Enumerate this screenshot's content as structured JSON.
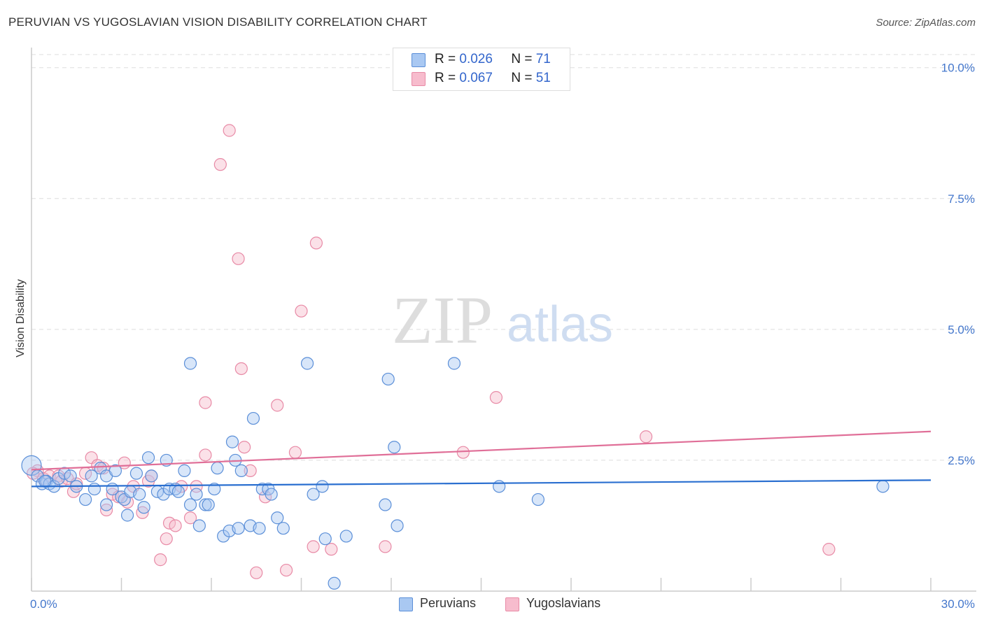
{
  "header": {
    "title": "PERUVIAN VS YUGOSLAVIAN VISION DISABILITY CORRELATION CHART",
    "source": "Source: ZipAtlas.com"
  },
  "watermark": {
    "zip": "ZIP",
    "atlas": "atlas"
  },
  "colors": {
    "peruvian_fill": "#a9c8f2",
    "peruvian_stroke": "#5b8fd8",
    "peruvian_line": "#2a6fd0",
    "yugoslav_fill": "#f7bccd",
    "yugoslav_stroke": "#e88aa6",
    "yugoslav_line": "#e06f98",
    "tick": "#4477cc"
  },
  "legend_top": [
    {
      "r_label": "R =",
      "r_value": "0.026",
      "n_label": "N =",
      "n_value": "71"
    },
    {
      "r_label": "R =",
      "r_value": "0.067",
      "n_label": "N =",
      "n_value": "51"
    }
  ],
  "legend_bottom": [
    "Peruvians",
    "Yugoslavians"
  ],
  "chart_data": {
    "type": "scatter",
    "title": "PERUVIAN VS YUGOSLAVIAN VISION DISABILITY CORRELATION CHART",
    "xlabel": "",
    "ylabel": "Vision Disability",
    "xlim": [
      0,
      30
    ],
    "ylim": [
      0,
      10.25
    ],
    "x_tick_labels": [
      "0.0%",
      "30.0%"
    ],
    "y_ticks": [
      2.5,
      5.0,
      7.5,
      10.0
    ],
    "y_tick_labels": [
      "2.5%",
      "5.0%",
      "7.5%",
      "10.0%"
    ],
    "series": [
      {
        "name": "Peruvians",
        "r": 0.026,
        "n": 71,
        "trend": {
          "x": [
            0,
            30
          ],
          "y": [
            2.0,
            2.12
          ]
        },
        "points": [
          [
            0.0,
            2.4
          ],
          [
            0.2,
            2.2
          ],
          [
            0.35,
            2.05
          ],
          [
            0.5,
            2.1
          ],
          [
            0.6,
            2.05
          ],
          [
            0.75,
            2.0
          ],
          [
            0.9,
            2.15
          ],
          [
            1.1,
            2.25
          ],
          [
            1.3,
            2.2
          ],
          [
            1.5,
            2.0
          ],
          [
            1.8,
            1.75
          ],
          [
            2.0,
            2.2
          ],
          [
            2.1,
            1.95
          ],
          [
            2.3,
            2.35
          ],
          [
            2.5,
            2.2
          ],
          [
            2.5,
            1.65
          ],
          [
            2.7,
            1.95
          ],
          [
            2.8,
            2.3
          ],
          [
            3.0,
            1.8
          ],
          [
            3.1,
            1.75
          ],
          [
            3.2,
            1.45
          ],
          [
            3.3,
            1.9
          ],
          [
            3.5,
            2.25
          ],
          [
            3.6,
            1.85
          ],
          [
            3.75,
            1.6
          ],
          [
            3.9,
            2.55
          ],
          [
            4.0,
            2.2
          ],
          [
            4.2,
            1.9
          ],
          [
            4.4,
            1.85
          ],
          [
            4.5,
            2.5
          ],
          [
            4.6,
            1.95
          ],
          [
            4.8,
            1.95
          ],
          [
            4.9,
            1.9
          ],
          [
            5.1,
            2.3
          ],
          [
            5.3,
            4.35
          ],
          [
            5.3,
            1.65
          ],
          [
            5.5,
            1.85
          ],
          [
            5.6,
            1.25
          ],
          [
            5.8,
            1.65
          ],
          [
            5.9,
            1.65
          ],
          [
            6.1,
            1.95
          ],
          [
            6.2,
            2.35
          ],
          [
            6.4,
            1.05
          ],
          [
            6.6,
            1.15
          ],
          [
            6.7,
            2.85
          ],
          [
            6.8,
            2.5
          ],
          [
            6.9,
            1.2
          ],
          [
            7.0,
            2.3
          ],
          [
            7.3,
            1.25
          ],
          [
            7.4,
            3.3
          ],
          [
            7.6,
            1.2
          ],
          [
            7.7,
            1.95
          ],
          [
            7.9,
            1.95
          ],
          [
            8.0,
            1.85
          ],
          [
            8.2,
            1.4
          ],
          [
            8.4,
            1.2
          ],
          [
            9.2,
            4.35
          ],
          [
            9.4,
            1.85
          ],
          [
            9.7,
            2.0
          ],
          [
            9.8,
            1.0
          ],
          [
            10.1,
            0.15
          ],
          [
            10.5,
            1.05
          ],
          [
            11.8,
            1.65
          ],
          [
            11.9,
            4.05
          ],
          [
            12.1,
            2.75
          ],
          [
            12.2,
            1.25
          ],
          [
            14.1,
            4.35
          ],
          [
            15.6,
            2.0
          ],
          [
            16.9,
            1.75
          ],
          [
            28.4,
            2.0
          ],
          [
            0.45,
            2.1
          ]
        ]
      },
      {
        "name": "Yugoslavians",
        "r": 0.067,
        "n": 51,
        "trend": {
          "x": [
            0,
            30
          ],
          "y": [
            2.32,
            3.05
          ]
        },
        "points": [
          [
            0.2,
            2.3
          ],
          [
            0.4,
            2.15
          ],
          [
            0.6,
            2.2
          ],
          [
            0.9,
            2.2
          ],
          [
            1.0,
            2.1
          ],
          [
            1.2,
            2.15
          ],
          [
            1.4,
            1.9
          ],
          [
            1.5,
            2.05
          ],
          [
            1.8,
            2.25
          ],
          [
            2.0,
            2.55
          ],
          [
            2.2,
            2.4
          ],
          [
            2.4,
            2.35
          ],
          [
            2.5,
            1.55
          ],
          [
            2.7,
            1.85
          ],
          [
            2.9,
            1.8
          ],
          [
            3.1,
            2.45
          ],
          [
            3.2,
            1.7
          ],
          [
            3.4,
            2.0
          ],
          [
            3.7,
            1.5
          ],
          [
            3.9,
            2.1
          ],
          [
            4.0,
            2.2
          ],
          [
            4.3,
            0.6
          ],
          [
            4.5,
            1.0
          ],
          [
            4.6,
            1.3
          ],
          [
            4.8,
            1.25
          ],
          [
            5.0,
            2.0
          ],
          [
            5.3,
            1.4
          ],
          [
            5.5,
            2.0
          ],
          [
            5.8,
            3.6
          ],
          [
            5.8,
            2.6
          ],
          [
            6.3,
            8.15
          ],
          [
            6.6,
            8.8
          ],
          [
            6.9,
            6.35
          ],
          [
            7.0,
            4.25
          ],
          [
            7.1,
            2.75
          ],
          [
            7.3,
            2.3
          ],
          [
            7.5,
            0.35
          ],
          [
            7.8,
            1.8
          ],
          [
            8.2,
            3.55
          ],
          [
            8.5,
            0.4
          ],
          [
            8.8,
            2.65
          ],
          [
            9.0,
            5.35
          ],
          [
            9.4,
            0.85
          ],
          [
            9.5,
            6.65
          ],
          [
            10.0,
            0.8
          ],
          [
            11.8,
            0.85
          ],
          [
            14.4,
            2.65
          ],
          [
            15.5,
            3.7
          ],
          [
            20.5,
            2.95
          ],
          [
            26.6,
            0.8
          ],
          [
            0.05,
            2.25
          ]
        ]
      }
    ]
  },
  "axis": {
    "ylabel": "Vision Disability"
  }
}
